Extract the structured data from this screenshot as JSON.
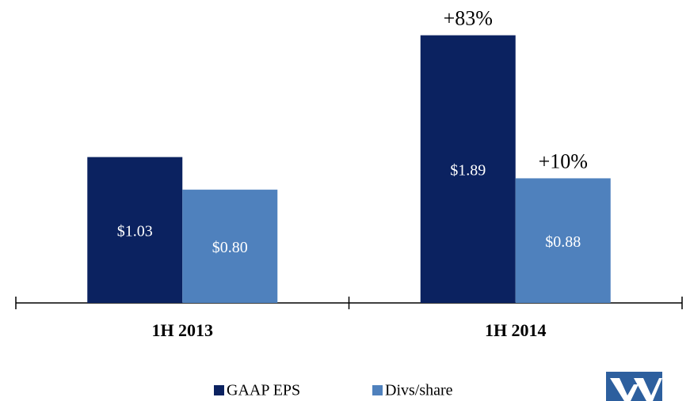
{
  "chart_data": {
    "type": "bar",
    "categories": [
      "1H 2013",
      "1H 2014"
    ],
    "series": [
      {
        "name": "GAAP EPS",
        "color": "#0b2260",
        "values": [
          1.03,
          1.89
        ],
        "value_labels": [
          "$1.03",
          "$1.89"
        ]
      },
      {
        "name": "Divs/share",
        "color": "#4f81bd",
        "values": [
          0.8,
          0.88
        ],
        "value_labels": [
          "$0.80",
          "$0.88"
        ]
      }
    ],
    "annotations": [
      "+83%",
      "+10%"
    ],
    "ylim": [
      0,
      2.1
    ],
    "grid": false
  }
}
